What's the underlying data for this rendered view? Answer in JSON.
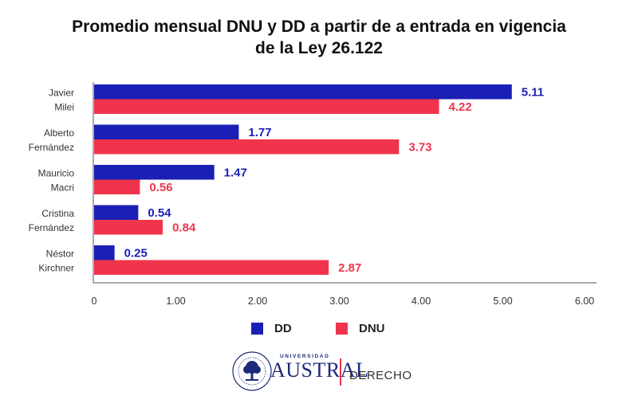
{
  "chart_data": {
    "type": "bar",
    "orientation": "horizontal",
    "title": [
      "Promedio mensual DNU y DD a partir de a entrada en vigencia",
      "de la Ley 26.122"
    ],
    "categories": [
      [
        "Javier",
        "Milei"
      ],
      [
        "Alberto",
        "Fernández"
      ],
      [
        "Mauricio",
        "Macri"
      ],
      [
        "Cristina",
        "Fernández"
      ],
      [
        "Néstor",
        "Kirchner"
      ]
    ],
    "series": [
      {
        "name": "DD",
        "color": "#1a1fb5",
        "values": [
          5.11,
          1.77,
          1.47,
          0.54,
          0.25
        ],
        "labels": [
          "5.11",
          "1.77",
          "1.47",
          "0.54",
          "0.25"
        ]
      },
      {
        "name": "DNU",
        "color": "#f0344c",
        "values": [
          4.22,
          3.73,
          0.56,
          0.84,
          2.87
        ],
        "labels": [
          "4.22",
          "3.73",
          "0.56",
          "0.84",
          "2.87"
        ]
      }
    ],
    "xlim": [
      0,
      6
    ],
    "xticks": [
      0,
      1,
      2,
      3,
      4,
      5,
      6
    ],
    "xtick_labels": [
      "0",
      "1.00",
      "2.00",
      "3.00",
      "4.00",
      "5.00",
      "6.00"
    ],
    "xlabel": "",
    "ylabel": "",
    "grid": false,
    "legend_position": "bottom"
  },
  "legend": {
    "dd_label": "DD",
    "dnu_label": "DNU",
    "dd_color": "#1a1fb5",
    "dnu_color": "#f0344c"
  },
  "footer": {
    "university_caption": "UNIVERSIDAD",
    "university_name": "AUSTRAL",
    "faculty": "DERECHO",
    "brand_color": "#1b2a7a",
    "accent_color": "#e8334a"
  }
}
